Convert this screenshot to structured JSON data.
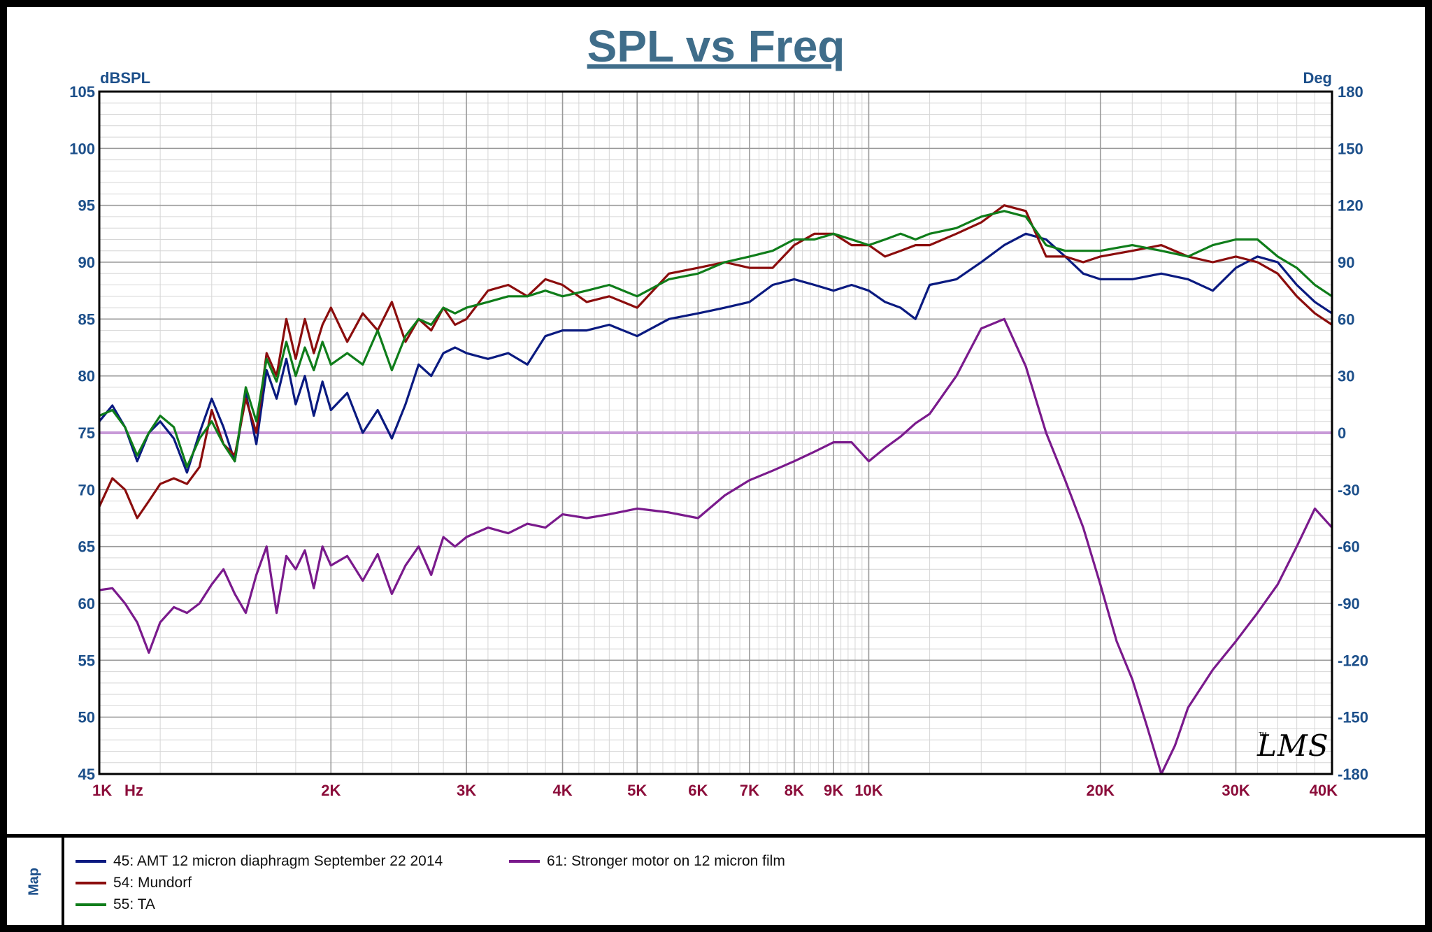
{
  "chart_data": {
    "type": "line",
    "title": "SPL vs Freq",
    "ylabel_left": "dBSPL",
    "ylabel_right": "Deg",
    "x_unit_label": "Hz",
    "x_scale": "log",
    "xlim": [
      1000,
      40000
    ],
    "ylim_left": [
      45,
      105
    ],
    "ylim_right": [
      -180,
      180
    ],
    "grid": true,
    "x_ticks": [
      {
        "value": 1000,
        "label": "1K"
      },
      {
        "value": 2000,
        "label": "2K"
      },
      {
        "value": 3000,
        "label": "3K"
      },
      {
        "value": 4000,
        "label": "4K"
      },
      {
        "value": 5000,
        "label": "5K"
      },
      {
        "value": 6000,
        "label": "6K"
      },
      {
        "value": 7000,
        "label": "7K"
      },
      {
        "value": 8000,
        "label": "8K"
      },
      {
        "value": 9000,
        "label": "9K"
      },
      {
        "value": 10000,
        "label": "10K"
      },
      {
        "value": 20000,
        "label": "20K"
      },
      {
        "value": 30000,
        "label": "30K"
      },
      {
        "value": 40000,
        "label": "40K"
      }
    ],
    "y_ticks_left": [
      "105",
      "100",
      "95",
      "90",
      "85",
      "80",
      "75",
      "70",
      "65",
      "60",
      "55",
      "50",
      "45"
    ],
    "y_ticks_right": [
      "180",
      "150",
      "120",
      "90",
      "60",
      "30",
      "0",
      "-30",
      "-60",
      "-90",
      "-120",
      "-150",
      "-180"
    ],
    "reference_line": {
      "axis": "right",
      "value": 0,
      "color": "#c89ad8"
    },
    "series": [
      {
        "name": "45: AMT 12 micron diaphragm September 22 2014",
        "color": "#0a1a80",
        "axis": "left",
        "x": [
          1000,
          1040,
          1080,
          1120,
          1160,
          1200,
          1250,
          1300,
          1350,
          1400,
          1450,
          1500,
          1550,
          1600,
          1650,
          1700,
          1750,
          1800,
          1850,
          1900,
          1950,
          2000,
          2100,
          2200,
          2300,
          2400,
          2500,
          2600,
          2700,
          2800,
          2900,
          3000,
          3200,
          3400,
          3600,
          3800,
          4000,
          4300,
          4600,
          5000,
          5500,
          6000,
          6500,
          7000,
          7500,
          8000,
          8500,
          9000,
          9500,
          10000,
          10500,
          11000,
          11500,
          12000,
          13000,
          14000,
          15000,
          16000,
          17000,
          18000,
          19000,
          20000,
          22000,
          24000,
          26000,
          28000,
          30000,
          32000,
          34000,
          36000,
          38000,
          40000
        ],
        "values": [
          76.0,
          77.4,
          75.5,
          72.5,
          75.0,
          76.0,
          74.5,
          71.5,
          75.0,
          78.0,
          75.5,
          72.5,
          78.5,
          74.0,
          80.5,
          78.0,
          81.5,
          77.5,
          80.0,
          76.5,
          79.5,
          77.0,
          78.5,
          75.0,
          77.0,
          74.5,
          77.5,
          81.0,
          80.0,
          82.0,
          82.5,
          82.0,
          81.5,
          82.0,
          81.0,
          83.5,
          84.0,
          84.0,
          84.5,
          83.5,
          85.0,
          85.5,
          86.0,
          86.5,
          88.0,
          88.5,
          88.0,
          87.5,
          88.0,
          87.5,
          86.5,
          86.0,
          85.0,
          88.0,
          88.5,
          90.0,
          91.5,
          92.5,
          92.0,
          90.5,
          89.0,
          88.5,
          88.5,
          89.0,
          88.5,
          87.5,
          89.5,
          90.5,
          90.0,
          88.0,
          86.5,
          85.5
        ]
      },
      {
        "name": "54: Mundorf",
        "color": "#8b0d0d",
        "axis": "left",
        "x": [
          1000,
          1040,
          1080,
          1120,
          1160,
          1200,
          1250,
          1300,
          1350,
          1400,
          1450,
          1500,
          1550,
          1600,
          1650,
          1700,
          1750,
          1800,
          1850,
          1900,
          1950,
          2000,
          2100,
          2200,
          2300,
          2400,
          2500,
          2600,
          2700,
          2800,
          2900,
          3000,
          3200,
          3400,
          3600,
          3800,
          4000,
          4300,
          4600,
          5000,
          5500,
          6000,
          6500,
          7000,
          7500,
          8000,
          8500,
          9000,
          9500,
          10000,
          10500,
          11000,
          11500,
          12000,
          13000,
          14000,
          15000,
          16000,
          17000,
          18000,
          19000,
          20000,
          22000,
          24000,
          26000,
          28000,
          30000,
          32000,
          34000,
          36000,
          38000,
          40000
        ],
        "values": [
          68.5,
          71.0,
          70.0,
          67.5,
          69.0,
          70.5,
          71.0,
          70.5,
          72.0,
          77.0,
          74.0,
          73.0,
          78.0,
          75.0,
          82.0,
          80.0,
          85.0,
          81.5,
          85.0,
          82.0,
          84.5,
          86.0,
          83.0,
          85.5,
          84.0,
          86.5,
          83.0,
          85.0,
          84.0,
          86.0,
          84.5,
          85.0,
          87.5,
          88.0,
          87.0,
          88.5,
          88.0,
          86.5,
          87.0,
          86.0,
          89.0,
          89.5,
          90.0,
          89.5,
          89.5,
          91.5,
          92.5,
          92.5,
          91.5,
          91.5,
          90.5,
          91.0,
          91.5,
          91.5,
          92.5,
          93.5,
          95.0,
          94.5,
          90.5,
          90.5,
          90.0,
          90.5,
          91.0,
          91.5,
          90.5,
          90.0,
          90.5,
          90.0,
          89.0,
          87.0,
          85.5,
          84.5
        ]
      },
      {
        "name": "55: TA",
        "color": "#0f7d1a",
        "axis": "left",
        "x": [
          1000,
          1040,
          1080,
          1120,
          1160,
          1200,
          1250,
          1300,
          1350,
          1400,
          1450,
          1500,
          1550,
          1600,
          1650,
          1700,
          1750,
          1800,
          1850,
          1900,
          1950,
          2000,
          2100,
          2200,
          2300,
          2400,
          2500,
          2600,
          2700,
          2800,
          2900,
          3000,
          3200,
          3400,
          3600,
          3800,
          4000,
          4300,
          4600,
          5000,
          5500,
          6000,
          6500,
          7000,
          7500,
          8000,
          8500,
          9000,
          9500,
          10000,
          10500,
          11000,
          11500,
          12000,
          13000,
          14000,
          15000,
          16000,
          17000,
          18000,
          19000,
          20000,
          22000,
          24000,
          26000,
          28000,
          30000,
          32000,
          34000,
          36000,
          38000,
          40000
        ],
        "values": [
          76.5,
          77.0,
          75.5,
          73.0,
          75.0,
          76.5,
          75.5,
          72.0,
          74.5,
          76.0,
          74.0,
          72.5,
          79.0,
          76.0,
          81.5,
          79.5,
          83.0,
          80.0,
          82.5,
          80.5,
          83.0,
          81.0,
          82.0,
          81.0,
          84.0,
          80.5,
          83.5,
          85.0,
          84.5,
          86.0,
          85.5,
          86.0,
          86.5,
          87.0,
          87.0,
          87.5,
          87.0,
          87.5,
          88.0,
          87.0,
          88.5,
          89.0,
          90.0,
          90.5,
          91.0,
          92.0,
          92.0,
          92.5,
          92.0,
          91.5,
          92.0,
          92.5,
          92.0,
          92.5,
          93.0,
          94.0,
          94.5,
          94.0,
          91.5,
          91.0,
          91.0,
          91.0,
          91.5,
          91.0,
          90.5,
          91.5,
          92.0,
          92.0,
          90.5,
          89.5,
          88.0,
          87.0
        ]
      },
      {
        "name": "61: Stronger motor on 12 micron film",
        "color": "#7a1a8c",
        "axis": "right",
        "x": [
          1000,
          1040,
          1080,
          1120,
          1160,
          1200,
          1250,
          1300,
          1350,
          1400,
          1450,
          1500,
          1550,
          1600,
          1650,
          1700,
          1750,
          1800,
          1850,
          1900,
          1950,
          2000,
          2100,
          2200,
          2300,
          2400,
          2500,
          2600,
          2700,
          2800,
          2900,
          3000,
          3200,
          3400,
          3600,
          3800,
          4000,
          4300,
          4600,
          5000,
          5500,
          6000,
          6500,
          7000,
          7500,
          8000,
          8500,
          9000,
          9500,
          10000,
          10500,
          11000,
          11500,
          12000,
          13000,
          14000,
          15000,
          16000,
          17000,
          18000,
          19000,
          20000,
          21000,
          22000,
          23000,
          24000,
          25000,
          26000,
          28000,
          30000,
          32000,
          34000,
          36000,
          38000,
          40000
        ],
        "values": [
          -83,
          -82,
          -90,
          -100,
          -116,
          -100,
          -92,
          -95,
          -90,
          -80,
          -72,
          -85,
          -95,
          -75,
          -60,
          -95,
          -65,
          -72,
          -62,
          -82,
          -60,
          -70,
          -65,
          -78,
          -64,
          -85,
          -70,
          -60,
          -75,
          -55,
          -60,
          -55,
          -50,
          -53,
          -48,
          -50,
          -43,
          -45,
          -43,
          -40,
          -42,
          -45,
          -33,
          -25,
          -20,
          -15,
          -10,
          -5,
          -5,
          -15,
          -8,
          -2,
          5,
          10,
          30,
          55,
          60,
          35,
          0,
          -25,
          -50,
          -80,
          -110,
          -130,
          -155,
          -180,
          -165,
          -145,
          -125,
          -110,
          -95,
          -80,
          -60,
          -40,
          -50
        ]
      }
    ]
  },
  "legend": {
    "map_label": "Map",
    "entries": [
      {
        "label": "45: AMT 12 micron diaphragm September 22 2014",
        "color": "#0a1a80"
      },
      {
        "label": "54: Mundorf",
        "color": "#8b0d0d"
      },
      {
        "label": "55: TA",
        "color": "#0f7d1a"
      },
      {
        "label": "61: Stronger motor on 12 micron film",
        "color": "#7a1a8c"
      }
    ]
  },
  "watermark": {
    "text": "LMS",
    "tm": "TM"
  },
  "colors": {
    "title": "#3f6d8a",
    "axis_label": "#1c4f8a",
    "x_tick": "#8b0d3a",
    "grid_major": "#9a9a9a",
    "grid_minor": "#d6d6d6"
  }
}
